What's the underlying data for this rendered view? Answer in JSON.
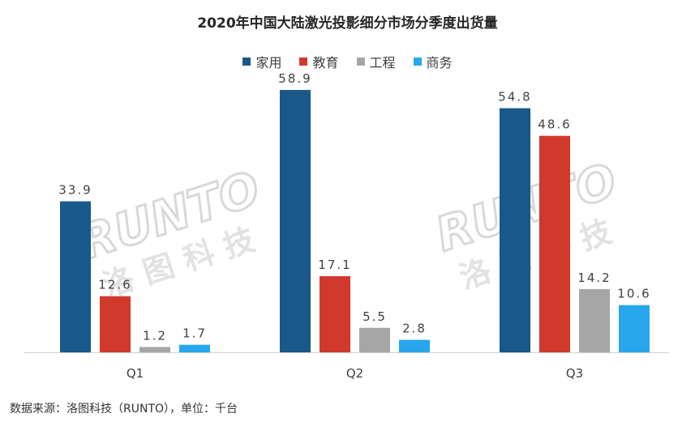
{
  "chart_data": {
    "type": "bar",
    "title": "2020年中国大陆激光投影细分市场分季度出货量",
    "categories": [
      "Q1",
      "Q2",
      "Q3"
    ],
    "series": [
      {
        "name": "家用",
        "color": "#1a5889",
        "values": [
          33.9,
          58.9,
          54.8
        ],
        "labels": [
          "33.9",
          "58.9",
          "54.8"
        ]
      },
      {
        "name": "教育",
        "color": "#d0392b",
        "values": [
          12.6,
          17.1,
          48.6
        ],
        "labels": [
          "12.6",
          "17.1",
          "48.6"
        ]
      },
      {
        "name": "工程",
        "color": "#a6a6a6",
        "values": [
          1.2,
          5.5,
          14.2
        ],
        "labels": [
          "1.2",
          "5.5",
          "14.2"
        ]
      },
      {
        "name": "商务",
        "color": "#27a6ed",
        "values": [
          1.7,
          2.8,
          10.6
        ],
        "labels": [
          "1.7",
          "2.8",
          "10.6"
        ]
      }
    ],
    "ylim": [
      0,
      60
    ],
    "grid": false,
    "legend_position": "top-center"
  },
  "source_note": "数据来源：洛图科技（RUNTO），单位：千台",
  "watermark": {
    "brand": "RUNTO",
    "name": "洛图科技"
  }
}
